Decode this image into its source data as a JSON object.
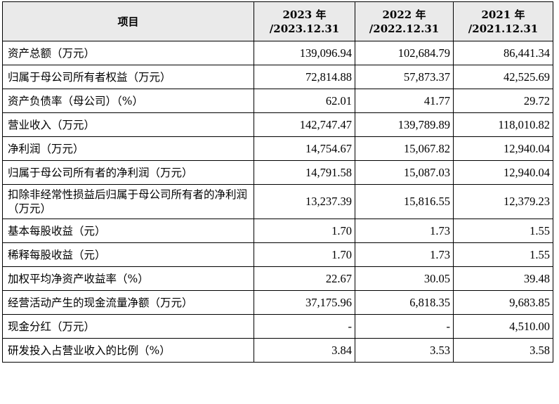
{
  "table": {
    "headers": [
      {
        "line1": "项目",
        "line2": ""
      },
      {
        "line1": "2023 年",
        "line2": "/2023.12.31"
      },
      {
        "line1": "2022 年",
        "line2": "/2022.12.31"
      },
      {
        "line1": "2021 年",
        "line2": "/2021.12.31"
      }
    ],
    "rows": [
      {
        "label": "资产总额（万元）",
        "v2023": "139,096.94",
        "v2022": "102,684.79",
        "v2021": "86,441.34"
      },
      {
        "label": "归属于母公司所有者权益（万元）",
        "v2023": "72,814.88",
        "v2022": "57,873.37",
        "v2021": "42,525.69"
      },
      {
        "label": "资产负债率（母公司）（%）",
        "v2023": "62.01",
        "v2022": "41.77",
        "v2021": "29.72"
      },
      {
        "label": "营业收入（万元）",
        "v2023": "142,747.47",
        "v2022": "139,789.89",
        "v2021": "118,010.82"
      },
      {
        "label": "净利润（万元）",
        "v2023": "14,754.67",
        "v2022": "15,067.82",
        "v2021": "12,940.04"
      },
      {
        "label": "归属于母公司所有者的净利润（万元）",
        "v2023": "14,791.58",
        "v2022": "15,087.03",
        "v2021": "12,940.04"
      },
      {
        "label": "扣除非经常性损益后归属于母公司所有者的净利润（万元）",
        "v2023": "13,237.39",
        "v2022": "15,816.55",
        "v2021": "12,379.23"
      },
      {
        "label": "基本每股收益（元）",
        "v2023": "1.70",
        "v2022": "1.73",
        "v2021": "1.55"
      },
      {
        "label": "稀释每股收益（元）",
        "v2023": "1.70",
        "v2022": "1.73",
        "v2021": "1.55"
      },
      {
        "label": "加权平均净资产收益率（%）",
        "v2023": "22.67",
        "v2022": "30.05",
        "v2021": "39.48"
      },
      {
        "label": "经营活动产生的现金流量净额（万元）",
        "v2023": "37,175.96",
        "v2022": "6,818.35",
        "v2021": "9,683.85"
      },
      {
        "label": "现金分红（万元）",
        "v2023": "-",
        "v2022": "-",
        "v2021": "4,510.00"
      },
      {
        "label": "研发投入占营业收入的比例（%）",
        "v2023": "3.84",
        "v2022": "3.53",
        "v2021": "3.58"
      }
    ]
  }
}
